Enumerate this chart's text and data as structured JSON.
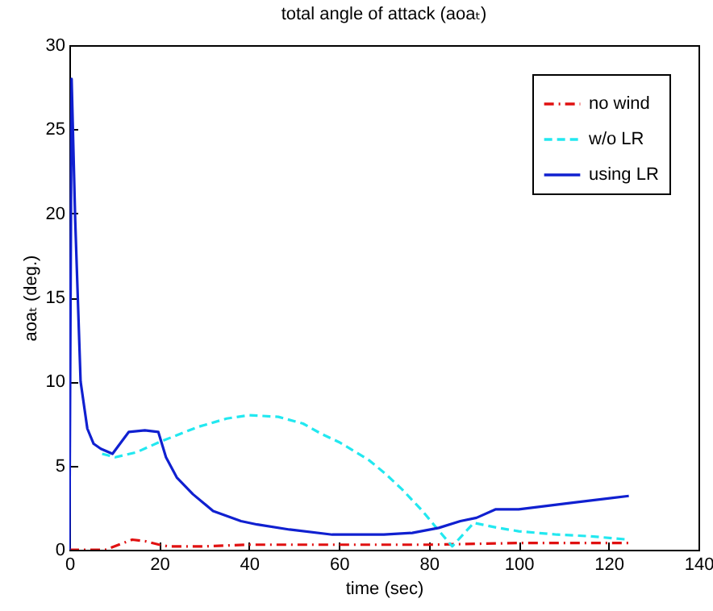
{
  "chart_data": {
    "type": "line",
    "title": "total angle of attack (aoaₜ)",
    "xlabel": "time (sec)",
    "ylabel": "aoaₜ (deg.)",
    "xlim": [
      0,
      140
    ],
    "xticks": [
      0,
      20,
      40,
      60,
      80,
      100,
      120,
      140
    ],
    "ylim": [
      0,
      30
    ],
    "yticks": [
      0,
      5,
      10,
      15,
      20,
      25,
      30
    ],
    "grid": false,
    "legend": "top right",
    "marker": "none",
    "series": [
      {
        "name": "no wind",
        "color": "#e01010",
        "line_style": "dotted",
        "x": [
          0,
          4,
          8,
          11,
          14,
          17,
          20,
          22,
          26,
          30,
          40,
          60,
          80,
          100,
          124.5
        ],
        "values": [
          0,
          0,
          0,
          0.3,
          0.6,
          0.5,
          0.3,
          0.2,
          0.2,
          0.2,
          0.3,
          0.3,
          0.3,
          0.4,
          0.4
        ]
      },
      {
        "name": "w/o LR",
        "color": "#22e8f0",
        "line_style": "dashed",
        "x": [
          7.3,
          10.2,
          15,
          20,
          28.6,
          35,
          40,
          46.5,
          52,
          56,
          60,
          64.4,
          66.8,
          70.4,
          74,
          78.6,
          82,
          85.2,
          90,
          95.4,
          100,
          108.5,
          116,
          124.5
        ],
        "values": [
          5.7,
          5.5,
          5.8,
          6.4,
          7.3,
          7.8,
          8,
          7.9,
          7.5,
          6.9,
          6.4,
          5.7,
          5.3,
          4.5,
          3.6,
          2.3,
          1.2,
          0.2,
          1.6,
          1.3,
          1.1,
          0.9,
          0.8,
          0.6
        ]
      },
      {
        "name": "using LR",
        "color": "#1020d0",
        "line_style": "solid",
        "x": [
          0,
          0.5,
          1.3,
          2.5,
          4,
          5.4,
          7,
          9.6,
          13.2,
          16.8,
          19.8,
          21.5,
          23.9,
          27.5,
          32,
          38.2,
          41.8,
          49,
          58.5,
          70,
          76.3,
          82.2,
          87,
          90.6,
          94.8,
          100,
          112,
          124.5
        ],
        "values": [
          0,
          28,
          19.6,
          10,
          7.2,
          6.3,
          6,
          5.7,
          7,
          7.1,
          7,
          5.5,
          4.3,
          3.3,
          2.3,
          1.7,
          1.5,
          1.2,
          0.9,
          0.9,
          1,
          1.3,
          1.7,
          1.9,
          2.4,
          2.4,
          2.8,
          3.2
        ]
      }
    ]
  }
}
